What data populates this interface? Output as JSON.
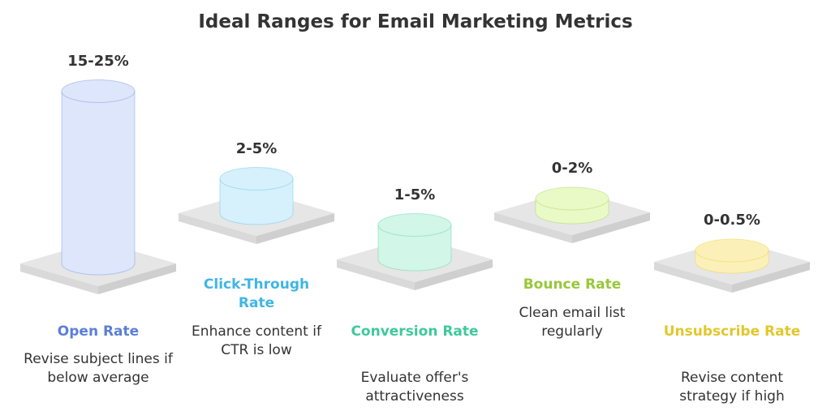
{
  "chart_data": {
    "type": "bar",
    "title": "Ideal Ranges for Email Marketing Metrics",
    "categories": [
      "Open Rate",
      "Click-Through Rate",
      "Conversion Rate",
      "Bounce Rate",
      "Unsubscribe Rate"
    ],
    "range_labels": [
      "15-25%",
      "2-5%",
      "1-5%",
      "0-2%",
      "0-0.5%"
    ],
    "ranges": [
      [
        15,
        25
      ],
      [
        2,
        5
      ],
      [
        1,
        5
      ],
      [
        0,
        2
      ],
      [
        0,
        0.5
      ]
    ],
    "advice": [
      "Revise subject lines if below average",
      "Enhance content if CTR is low",
      "Evaluate offer's attractiveness",
      "Clean email list regularly",
      "Revise content strategy if high"
    ],
    "colors": {
      "text": "#333333",
      "platform": "#e6e6e6",
      "series": [
        "#5b7fd8",
        "#3fb6e4",
        "#3ec99a",
        "#97c83a",
        "#e2c72c"
      ],
      "fills": [
        "#dde6fb",
        "#d6f1fc",
        "#d2f6e8",
        "#e9fac7",
        "#fbf1b8"
      ]
    }
  }
}
